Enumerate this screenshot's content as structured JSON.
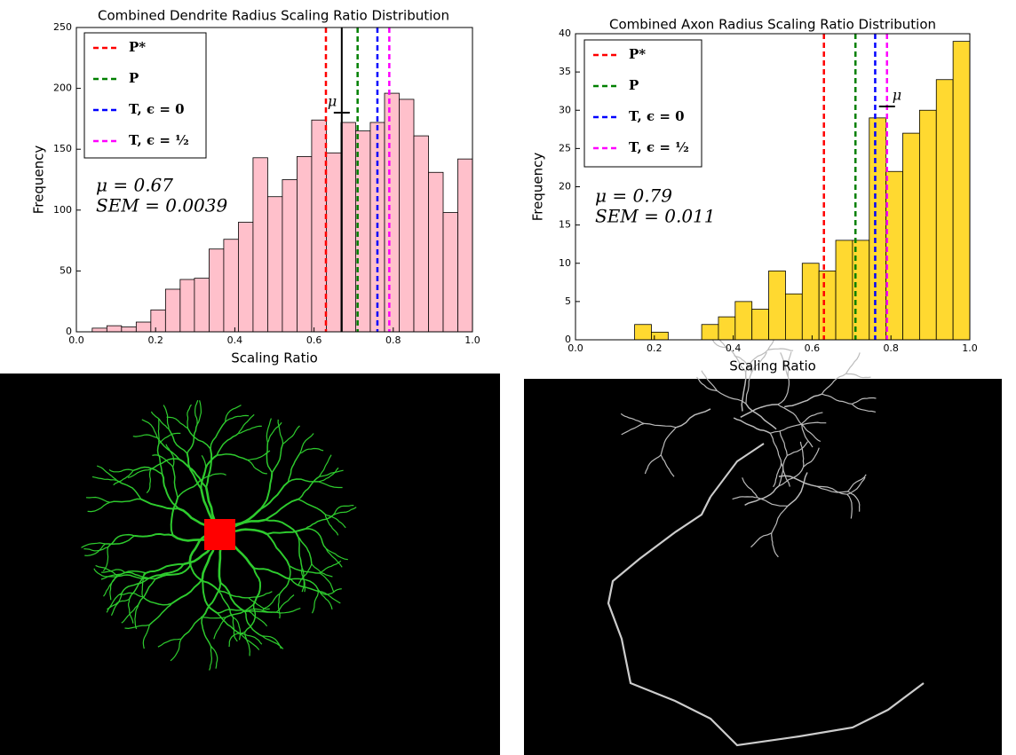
{
  "chart_data": [
    {
      "type": "histogram",
      "title": "Combined Dendrite Radius Scaling Ratio Distribution",
      "xlabel": "Scaling Ratio",
      "ylabel": "Frequency",
      "bins": [
        0.04,
        0.077,
        0.114,
        0.151,
        0.188,
        0.225,
        0.262,
        0.298,
        0.335,
        0.372,
        0.409,
        0.446,
        0.483,
        0.52,
        0.557,
        0.594,
        0.631,
        0.668,
        0.705,
        0.742,
        0.778,
        0.815,
        0.852,
        0.889,
        0.926,
        0.963,
        1.0
      ],
      "values": [
        3,
        5,
        4,
        8,
        18,
        35,
        43,
        44,
        68,
        76,
        90,
        143,
        111,
        125,
        144,
        174,
        147,
        172,
        165,
        172,
        196,
        191,
        161,
        131,
        98,
        142
      ],
      "color": "#ffc0cb",
      "xlim": [
        0,
        1
      ],
      "ylim": [
        0,
        250
      ],
      "xticks": [
        {
          "value": 0,
          "label": "0.0"
        },
        0.2,
        0.4,
        0.6,
        0.8,
        {
          "value": 1,
          "label": "1.0"
        }
      ],
      "yticks": [
        0,
        50,
        100,
        150,
        200,
        250
      ],
      "lines": [
        {
          "name": "P*",
          "color": "#ff0000",
          "value": 0.63
        },
        {
          "name": "P",
          "color": "#008000",
          "value": 0.71
        },
        {
          "name": "T, ϵ = 0",
          "color": "#0000ff",
          "value": 0.76
        },
        {
          "name": "T, ϵ = ½",
          "color": "#ff00ff",
          "value": 0.79
        }
      ],
      "mean": 0.67,
      "sem": 0.0039,
      "mean_height": 180,
      "mean_full_line": true,
      "mean_symbol": "μ",
      "annotations": [
        "μ = 0.67",
        "SEM = 0.0039"
      ]
    },
    {
      "type": "histogram",
      "title": "Combined Axon Radius Scaling Ratio Distribution",
      "xlabel": "Scaling Ratio",
      "ylabel": "Frequency",
      "bins": [
        0.15,
        0.1925,
        0.235,
        0.2775,
        0.32,
        0.3625,
        0.405,
        0.4475,
        0.49,
        0.5325,
        0.575,
        0.6175,
        0.66,
        0.7025,
        0.745,
        0.7875,
        0.83,
        0.8725,
        0.915,
        0.9575,
        1.0
      ],
      "values": [
        2,
        1,
        0,
        0,
        2,
        3,
        5,
        4,
        9,
        6,
        10,
        9,
        13,
        13,
        29,
        22,
        27,
        30,
        34,
        39
      ],
      "color": "#ffd930",
      "xlim": [
        0,
        1
      ],
      "ylim": [
        0,
        40
      ],
      "xticks": [
        {
          "value": 0,
          "label": "0.0"
        },
        0.2,
        0.4,
        0.6,
        0.8,
        {
          "value": 1,
          "label": "1.0"
        }
      ],
      "yticks": [
        0,
        5,
        10,
        15,
        20,
        25,
        30,
        35,
        40
      ],
      "lines": [
        {
          "name": "P*",
          "color": "#ff0000",
          "value": 0.63
        },
        {
          "name": "P",
          "color": "#008000",
          "value": 0.71
        },
        {
          "name": "T, ϵ = 0",
          "color": "#0000ff",
          "value": 0.76
        },
        {
          "name": "T, ϵ = ½",
          "color": "#ff00ff",
          "value": 0.79
        }
      ],
      "mean": 0.79,
      "sem": 0.011,
      "mean_height": 30.5,
      "mean_full_line": false,
      "mean_symbol": "μ",
      "annotations": [
        "μ = 0.79",
        "SEM = 0.011"
      ]
    }
  ]
}
